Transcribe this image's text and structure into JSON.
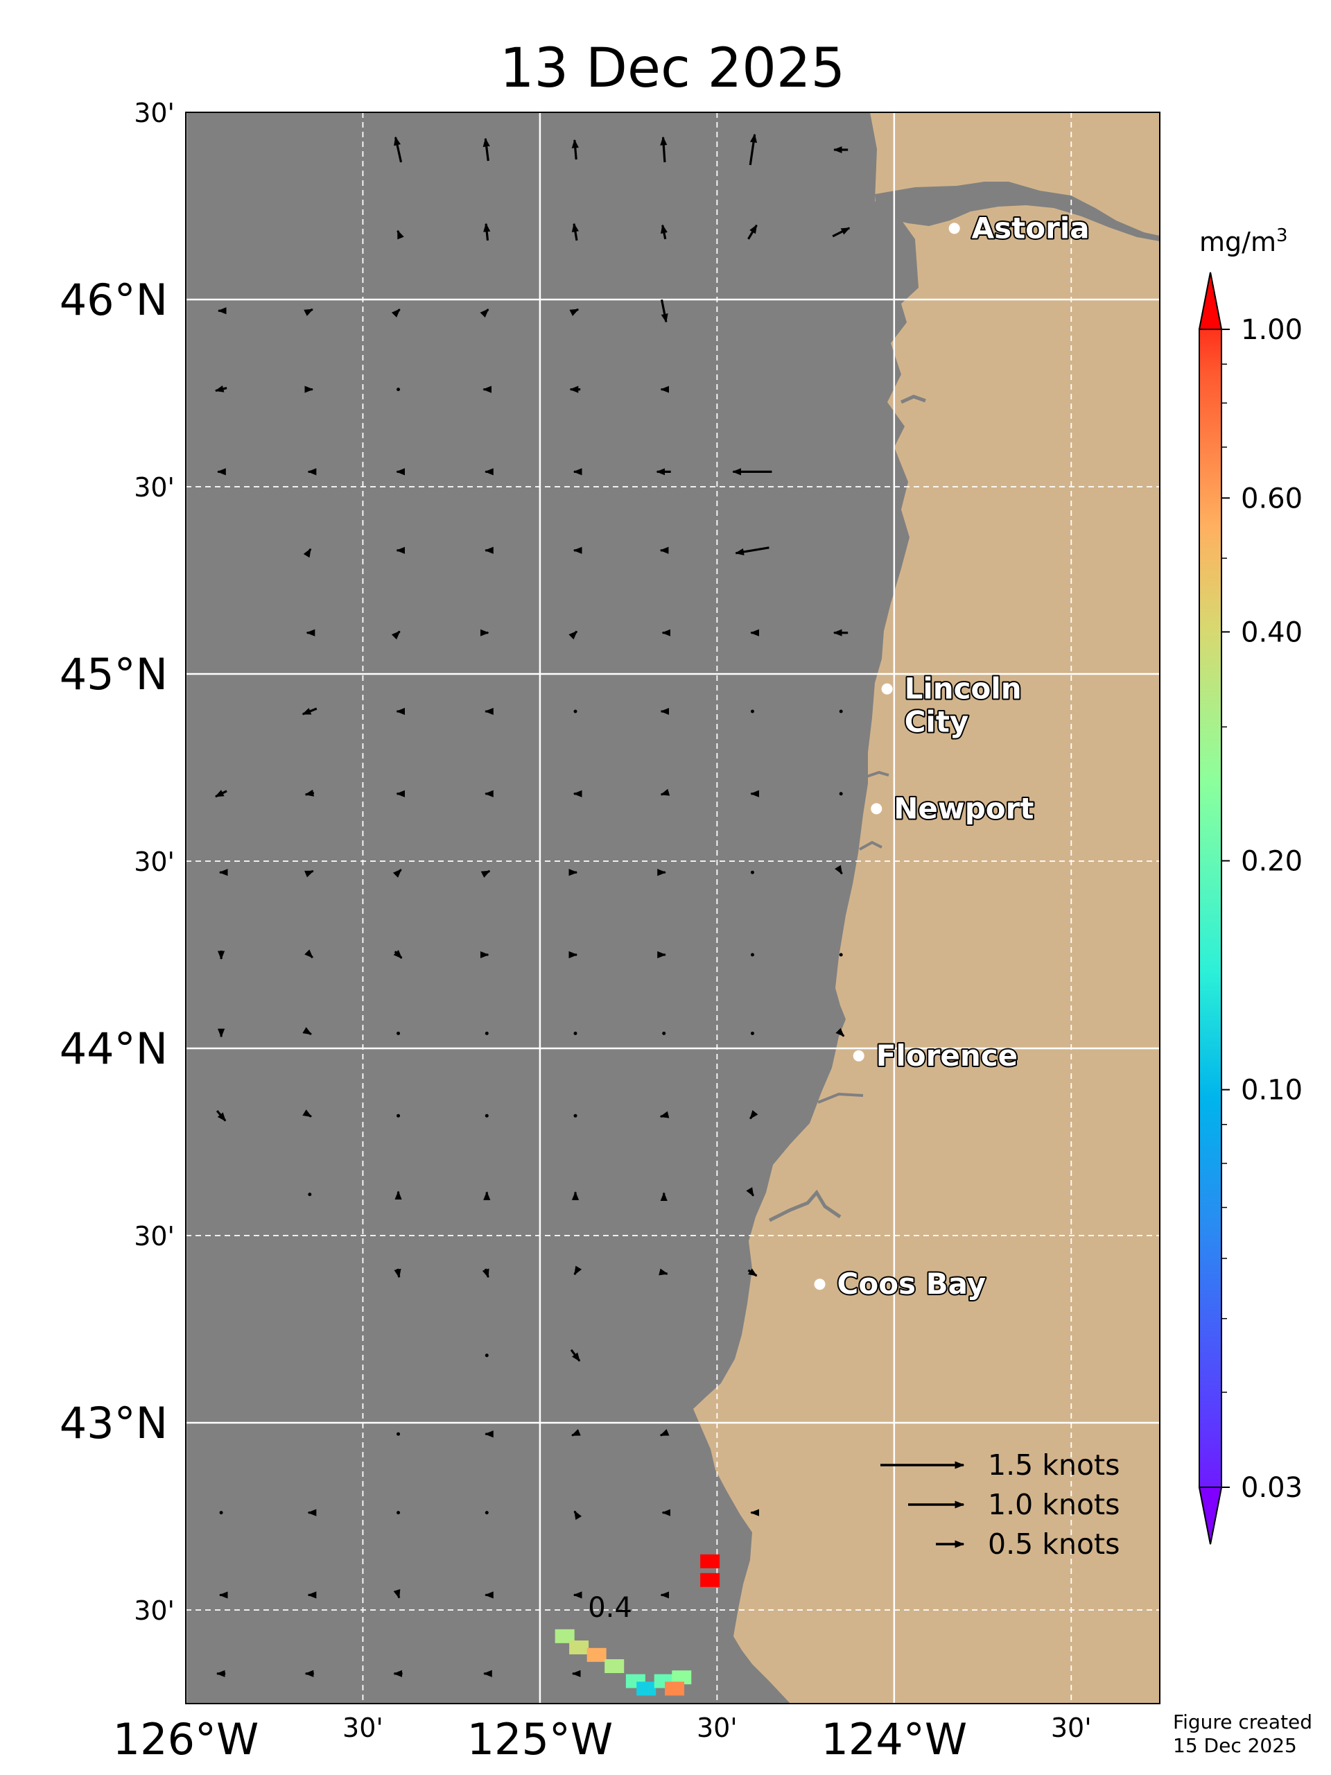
{
  "title": "13 Dec 2025",
  "map": {
    "extent": {
      "lon_min": -126.0,
      "lon_max": -123.25,
      "lat_min": 42.25,
      "lat_max": 46.5
    },
    "ocean_color": "#808080",
    "land_color": "#d2b48c",
    "lon_ticks": [
      {
        "lon": -126.0,
        "label": "126°W",
        "major": true
      },
      {
        "lon": -125.5,
        "label": "30'",
        "major": false
      },
      {
        "lon": -125.0,
        "label": "125°W",
        "major": true
      },
      {
        "lon": -124.5,
        "label": "30'",
        "major": false
      },
      {
        "lon": -124.0,
        "label": "124°W",
        "major": true
      },
      {
        "lon": -123.5,
        "label": "30'",
        "major": false
      }
    ],
    "lat_ticks": [
      {
        "lat": 46.5,
        "label": "30'",
        "major": false
      },
      {
        "lat": 46.0,
        "label": "46°N",
        "major": true
      },
      {
        "lat": 45.5,
        "label": "30'",
        "major": false
      },
      {
        "lat": 45.0,
        "label": "45°N",
        "major": true
      },
      {
        "lat": 44.5,
        "label": "30'",
        "major": false
      },
      {
        "lat": 44.0,
        "label": "44°N",
        "major": true
      },
      {
        "lat": 43.5,
        "label": "30'",
        "major": false
      },
      {
        "lat": 43.0,
        "label": "43°N",
        "major": true
      },
      {
        "lat": 42.5,
        "label": "30'",
        "major": false
      }
    ],
    "cities": [
      {
        "name": "Astoria",
        "lat": 46.19,
        "lon": -123.83
      },
      {
        "name": "Lincoln",
        "name2": "City",
        "lat": 44.96,
        "lon": -124.02
      },
      {
        "name": "Newport",
        "lat": 44.64,
        "lon": -124.05
      },
      {
        "name": "Florence",
        "lat": 43.98,
        "lon": -124.1
      },
      {
        "name": "Coos Bay",
        "lat": 43.37,
        "lon": -124.21
      }
    ],
    "contour_label": "0.4"
  },
  "legend": {
    "items": [
      {
        "label": "1.5 knots",
        "knots": 1.5
      },
      {
        "label": "1.0 knots",
        "knots": 1.0
      },
      {
        "label": "0.5 knots",
        "knots": 0.5
      }
    ]
  },
  "colorbar": {
    "unit": "mg/m",
    "unit_sup": "3",
    "ticks": [
      {
        "value": 1.0,
        "label": "1.00"
      },
      {
        "value": 0.6,
        "label": "0.60"
      },
      {
        "value": 0.4,
        "label": "0.40"
      },
      {
        "value": 0.2,
        "label": "0.20"
      },
      {
        "value": 0.1,
        "label": "0.10"
      },
      {
        "value": 0.03,
        "label": "0.03"
      }
    ],
    "min": 0.03,
    "max": 1.0,
    "scale": "log"
  },
  "credit": {
    "line1": "Figure created",
    "line2": "15 Dec 2025"
  },
  "currents": [
    {
      "lon": -125.4,
      "lat": 46.4,
      "u": -0.1,
      "v": 0.45
    },
    {
      "lon": -125.15,
      "lat": 46.4,
      "u": -0.05,
      "v": 0.4
    },
    {
      "lon": -124.9,
      "lat": 46.4,
      "u": -0.03,
      "v": 0.35
    },
    {
      "lon": -124.65,
      "lat": 46.4,
      "u": -0.03,
      "v": 0.45
    },
    {
      "lon": -124.4,
      "lat": 46.4,
      "u": 0.08,
      "v": 0.55
    },
    {
      "lon": -124.15,
      "lat": 46.4,
      "u": -0.25,
      "v": 0.0
    },
    {
      "lon": -125.4,
      "lat": 46.18,
      "u": -0.02,
      "v": 0.05
    },
    {
      "lon": -125.15,
      "lat": 46.18,
      "u": -0.03,
      "v": 0.3
    },
    {
      "lon": -124.9,
      "lat": 46.18,
      "u": -0.05,
      "v": 0.3
    },
    {
      "lon": -124.65,
      "lat": 46.18,
      "u": -0.05,
      "v": 0.25
    },
    {
      "lon": -124.4,
      "lat": 46.18,
      "u": 0.15,
      "v": 0.25
    },
    {
      "lon": -124.15,
      "lat": 46.18,
      "u": 0.3,
      "v": 0.15
    },
    {
      "lon": -125.9,
      "lat": 45.97,
      "u": -0.1,
      "v": 0.0
    },
    {
      "lon": -125.65,
      "lat": 45.97,
      "u": 0.1,
      "v": 0.05
    },
    {
      "lon": -125.4,
      "lat": 45.97,
      "u": 0.05,
      "v": 0.05
    },
    {
      "lon": -125.15,
      "lat": 45.97,
      "u": 0.05,
      "v": 0.05
    },
    {
      "lon": -124.9,
      "lat": 45.97,
      "u": 0.1,
      "v": 0.05
    },
    {
      "lon": -124.65,
      "lat": 45.97,
      "u": 0.08,
      "v": -0.4
    },
    {
      "lon": -125.9,
      "lat": 45.76,
      "u": -0.2,
      "v": -0.05
    },
    {
      "lon": -125.65,
      "lat": 45.76,
      "u": 0.1,
      "v": 0.0
    },
    {
      "lon": -125.4,
      "lat": 45.76,
      "u": -0.03,
      "v": 0.0
    },
    {
      "lon": -125.15,
      "lat": 45.76,
      "u": -0.12,
      "v": 0.0
    },
    {
      "lon": -124.9,
      "lat": 45.76,
      "u": -0.18,
      "v": 0.0
    },
    {
      "lon": -124.65,
      "lat": 45.76,
      "u": -0.1,
      "v": 0.0
    },
    {
      "lon": -125.9,
      "lat": 45.54,
      "u": -0.12,
      "v": 0.0
    },
    {
      "lon": -125.65,
      "lat": 45.54,
      "u": -0.05,
      "v": 0.0
    },
    {
      "lon": -125.4,
      "lat": 45.54,
      "u": -0.05,
      "v": 0.0
    },
    {
      "lon": -125.15,
      "lat": 45.54,
      "u": -0.05,
      "v": 0.0
    },
    {
      "lon": -124.9,
      "lat": 45.54,
      "u": -0.05,
      "v": 0.0
    },
    {
      "lon": -124.65,
      "lat": 45.54,
      "u": -0.25,
      "v": 0.0
    },
    {
      "lon": -124.4,
      "lat": 45.54,
      "u": -0.7,
      "v": 0.0
    },
    {
      "lon": -125.65,
      "lat": 45.33,
      "u": 0.03,
      "v": 0.05
    },
    {
      "lon": -125.4,
      "lat": 45.33,
      "u": -0.05,
      "v": 0.0
    },
    {
      "lon": -125.15,
      "lat": 45.33,
      "u": -0.05,
      "v": 0.0
    },
    {
      "lon": -124.9,
      "lat": 45.33,
      "u": -0.05,
      "v": 0.0
    },
    {
      "lon": -124.65,
      "lat": 45.33,
      "u": -0.12,
      "v": 0.0
    },
    {
      "lon": -124.4,
      "lat": 45.33,
      "u": -0.6,
      "v": -0.1
    },
    {
      "lon": -125.65,
      "lat": 45.11,
      "u": -0.1,
      "v": 0.0
    },
    {
      "lon": -125.4,
      "lat": 45.11,
      "u": 0.05,
      "v": 0.05
    },
    {
      "lon": -125.15,
      "lat": 45.11,
      "u": 0.05,
      "v": 0.0
    },
    {
      "lon": -124.9,
      "lat": 45.11,
      "u": 0.05,
      "v": 0.05
    },
    {
      "lon": -124.65,
      "lat": 45.11,
      "u": -0.05,
      "v": 0.0
    },
    {
      "lon": -124.4,
      "lat": 45.11,
      "u": -0.05,
      "v": 0.0
    },
    {
      "lon": -124.15,
      "lat": 45.11,
      "u": -0.25,
      "v": 0.0
    },
    {
      "lon": -125.65,
      "lat": 44.9,
      "u": -0.25,
      "v": -0.1
    },
    {
      "lon": -125.4,
      "lat": 44.9,
      "u": -0.05,
      "v": 0.0
    },
    {
      "lon": -125.15,
      "lat": 44.9,
      "u": -0.05,
      "v": 0.0
    },
    {
      "lon": -124.9,
      "lat": 44.9,
      "u": -0.02,
      "v": 0.0
    },
    {
      "lon": -124.65,
      "lat": 44.9,
      "u": -0.1,
      "v": 0.0
    },
    {
      "lon": -124.4,
      "lat": 44.9,
      "u": -0.03,
      "v": 0.0
    },
    {
      "lon": -124.15,
      "lat": 44.9,
      "u": -0.03,
      "v": 0.0
    },
    {
      "lon": -125.9,
      "lat": 44.68,
      "u": -0.2,
      "v": -0.1
    },
    {
      "lon": -125.65,
      "lat": 44.68,
      "u": -0.15,
      "v": -0.03
    },
    {
      "lon": -125.4,
      "lat": 44.68,
      "u": -0.05,
      "v": 0.0
    },
    {
      "lon": -125.15,
      "lat": 44.68,
      "u": -0.05,
      "v": 0.0
    },
    {
      "lon": -124.9,
      "lat": 44.68,
      "u": -0.05,
      "v": 0.0
    },
    {
      "lon": -124.65,
      "lat": 44.68,
      "u": -0.1,
      "v": -0.03
    },
    {
      "lon": -124.4,
      "lat": 44.68,
      "u": -0.05,
      "v": 0.0
    },
    {
      "lon": -124.15,
      "lat": 44.68,
      "u": -0.03,
      "v": 0.0
    },
    {
      "lon": -125.9,
      "lat": 44.47,
      "u": -0.05,
      "v": 0.0
    },
    {
      "lon": -125.65,
      "lat": 44.47,
      "u": 0.12,
      "v": 0.05
    },
    {
      "lon": -125.4,
      "lat": 44.47,
      "u": 0.1,
      "v": 0.1
    },
    {
      "lon": -125.15,
      "lat": 44.47,
      "u": 0.1,
      "v": 0.05
    },
    {
      "lon": -124.9,
      "lat": 44.47,
      "u": 0.05,
      "v": 0.0
    },
    {
      "lon": -124.65,
      "lat": 44.47,
      "u": 0.05,
      "v": 0.0
    },
    {
      "lon": -124.4,
      "lat": 44.47,
      "u": -0.03,
      "v": 0.0
    },
    {
      "lon": -124.15,
      "lat": 44.47,
      "u": 0.03,
      "v": -0.05
    },
    {
      "lon": -125.9,
      "lat": 44.25,
      "u": 0.0,
      "v": -0.15
    },
    {
      "lon": -125.65,
      "lat": 44.25,
      "u": 0.1,
      "v": -0.1
    },
    {
      "lon": -125.4,
      "lat": 44.25,
      "u": 0.12,
      "v": -0.12
    },
    {
      "lon": -125.15,
      "lat": 44.25,
      "u": 0.05,
      "v": 0.0
    },
    {
      "lon": -124.9,
      "lat": 44.25,
      "u": 0.05,
      "v": 0.0
    },
    {
      "lon": -124.65,
      "lat": 44.25,
      "u": 0.05,
      "v": 0.0
    },
    {
      "lon": -124.4,
      "lat": 44.25,
      "u": 0.03,
      "v": 0.0
    },
    {
      "lon": -124.15,
      "lat": 44.25,
      "u": -0.03,
      "v": 0.0
    },
    {
      "lon": -125.9,
      "lat": 44.04,
      "u": 0.0,
      "v": -0.12
    },
    {
      "lon": -125.65,
      "lat": 44.04,
      "u": 0.05,
      "v": -0.03
    },
    {
      "lon": -125.4,
      "lat": 44.04,
      "u": 0.03,
      "v": 0.0
    },
    {
      "lon": -125.15,
      "lat": 44.04,
      "u": 0.03,
      "v": 0.0
    },
    {
      "lon": -124.9,
      "lat": 44.04,
      "u": 0.03,
      "v": 0.0
    },
    {
      "lon": -124.65,
      "lat": 44.04,
      "u": 0.03,
      "v": 0.0
    },
    {
      "lon": -124.4,
      "lat": 44.04,
      "u": 0.03,
      "v": 0.0
    },
    {
      "lon": -124.15,
      "lat": 44.04,
      "u": 0.1,
      "v": -0.1
    },
    {
      "lon": -125.9,
      "lat": 43.82,
      "u": 0.15,
      "v": -0.18
    },
    {
      "lon": -125.65,
      "lat": 43.82,
      "u": 0.05,
      "v": -0.03
    },
    {
      "lon": -125.4,
      "lat": 43.82,
      "u": 0.03,
      "v": 0.0
    },
    {
      "lon": -125.15,
      "lat": 43.82,
      "u": 0.03,
      "v": 0.0
    },
    {
      "lon": -124.9,
      "lat": 43.82,
      "u": -0.03,
      "v": 0.0
    },
    {
      "lon": -124.65,
      "lat": 43.82,
      "u": -0.12,
      "v": -0.03
    },
    {
      "lon": -124.4,
      "lat": 43.82,
      "u": -0.08,
      "v": -0.1
    },
    {
      "lon": -125.65,
      "lat": 43.61,
      "u": 0.02,
      "v": 0.0
    },
    {
      "lon": -125.4,
      "lat": 43.61,
      "u": 0.0,
      "v": 0.1
    },
    {
      "lon": -125.15,
      "lat": 43.61,
      "u": 0.0,
      "v": 0.08
    },
    {
      "lon": -124.9,
      "lat": 43.61,
      "u": 0.0,
      "v": 0.08
    },
    {
      "lon": -124.65,
      "lat": 43.61,
      "u": 0.0,
      "v": 0.05
    },
    {
      "lon": -124.4,
      "lat": 43.61,
      "u": 0.03,
      "v": -0.05
    },
    {
      "lon": -125.4,
      "lat": 43.4,
      "u": 0.03,
      "v": -0.15
    },
    {
      "lon": -125.15,
      "lat": 43.4,
      "u": 0.05,
      "v": -0.15
    },
    {
      "lon": -124.9,
      "lat": 43.4,
      "u": -0.03,
      "v": -0.05
    },
    {
      "lon": -124.65,
      "lat": 43.4,
      "u": 0.12,
      "v": -0.03
    },
    {
      "lon": -124.4,
      "lat": 43.4,
      "u": 0.15,
      "v": -0.1
    },
    {
      "lon": -125.15,
      "lat": 43.18,
      "u": 0.02,
      "v": 0.0
    },
    {
      "lon": -124.9,
      "lat": 43.18,
      "u": 0.15,
      "v": -0.2
    },
    {
      "lon": -125.4,
      "lat": 42.97,
      "u": -0.03,
      "v": 0.0
    },
    {
      "lon": -125.15,
      "lat": 42.97,
      "u": -0.05,
      "v": 0.0
    },
    {
      "lon": -124.9,
      "lat": 42.97,
      "u": -0.12,
      "v": -0.05
    },
    {
      "lon": -124.65,
      "lat": 42.97,
      "u": -0.12,
      "v": -0.05
    },
    {
      "lon": -125.9,
      "lat": 42.76,
      "u": -0.03,
      "v": 0.0
    },
    {
      "lon": -125.65,
      "lat": 42.76,
      "u": -0.05,
      "v": 0.0
    },
    {
      "lon": -125.4,
      "lat": 42.76,
      "u": -0.03,
      "v": 0.0
    },
    {
      "lon": -125.15,
      "lat": 42.76,
      "u": -0.03,
      "v": 0.0
    },
    {
      "lon": -124.9,
      "lat": 42.76,
      "u": -0.03,
      "v": 0.05
    },
    {
      "lon": -124.65,
      "lat": 42.76,
      "u": -0.05,
      "v": 0.0
    },
    {
      "lon": -124.4,
      "lat": 42.76,
      "u": -0.05,
      "v": 0.0
    },
    {
      "lon": -125.9,
      "lat": 42.54,
      "u": -0.05,
      "v": 0.0
    },
    {
      "lon": -125.65,
      "lat": 42.54,
      "u": -0.05,
      "v": 0.0
    },
    {
      "lon": -125.4,
      "lat": 42.54,
      "u": 0.03,
      "v": -0.1
    },
    {
      "lon": -125.15,
      "lat": 42.54,
      "u": -0.05,
      "v": 0.0
    },
    {
      "lon": -124.9,
      "lat": 42.54,
      "u": -0.05,
      "v": 0.0
    },
    {
      "lon": -124.65,
      "lat": 42.54,
      "u": -0.1,
      "v": 0.0
    },
    {
      "lon": -125.9,
      "lat": 42.33,
      "u": -0.15,
      "v": 0.0
    },
    {
      "lon": -125.65,
      "lat": 42.33,
      "u": -0.15,
      "v": 0.0
    },
    {
      "lon": -125.4,
      "lat": 42.33,
      "u": -0.15,
      "v": 0.0
    },
    {
      "lon": -125.15,
      "lat": 42.33,
      "u": -0.1,
      "v": 0.0
    },
    {
      "lon": -124.9,
      "lat": 42.33,
      "u": -0.1,
      "v": 0.0
    },
    {
      "lon": -125.65,
      "lat": 42.11,
      "u": -0.1,
      "v": 0.0
    },
    {
      "lon": -125.4,
      "lat": 42.11,
      "u": -0.05,
      "v": 0.0
    },
    {
      "lon": -125.15,
      "lat": 42.11,
      "u": -0.05,
      "v": 0.0
    },
    {
      "lon": -124.9,
      "lat": 42.11,
      "u": -0.15,
      "v": 0.0
    }
  ],
  "chlorophyll": [
    {
      "lon": -124.93,
      "lat": 42.43,
      "value": 0.3
    },
    {
      "lon": -124.89,
      "lat": 42.4,
      "value": 0.35
    },
    {
      "lon": -124.84,
      "lat": 42.38,
      "value": 0.5
    },
    {
      "lon": -124.79,
      "lat": 42.35,
      "value": 0.3
    },
    {
      "lon": -124.73,
      "lat": 42.31,
      "value": 0.2
    },
    {
      "lon": -124.7,
      "lat": 42.29,
      "value": 0.12
    },
    {
      "lon": -124.65,
      "lat": 42.31,
      "value": 0.2
    },
    {
      "lon": -124.6,
      "lat": 42.32,
      "value": 0.25
    },
    {
      "lon": -124.62,
      "lat": 42.29,
      "value": 0.6
    },
    {
      "lon": -124.52,
      "lat": 42.63,
      "value": 1.0
    },
    {
      "lon": -124.52,
      "lat": 42.58,
      "value": 1.0
    },
    {
      "lon": -124.53,
      "lat": 42.16,
      "value": 1.0
    },
    {
      "lon": -124.46,
      "lat": 42.15,
      "value": 0.5
    },
    {
      "lon": -124.44,
      "lat": 42.16,
      "value": 0.3
    },
    {
      "lon": -124.42,
      "lat": 42.2,
      "value": 1.0
    },
    {
      "lon": -124.4,
      "lat": 42.12,
      "value": 1.0
    },
    {
      "lon": -124.42,
      "lat": 42.08,
      "value": 1.0
    },
    {
      "lon": -124.36,
      "lat": 42.06,
      "value": 1.0
    },
    {
      "lon": -124.46,
      "lat": 42.04,
      "value": 1.0
    },
    {
      "lon": -124.4,
      "lat": 42.02,
      "value": 1.0
    },
    {
      "lon": -124.33,
      "lat": 42.02,
      "value": 1.0
    }
  ]
}
